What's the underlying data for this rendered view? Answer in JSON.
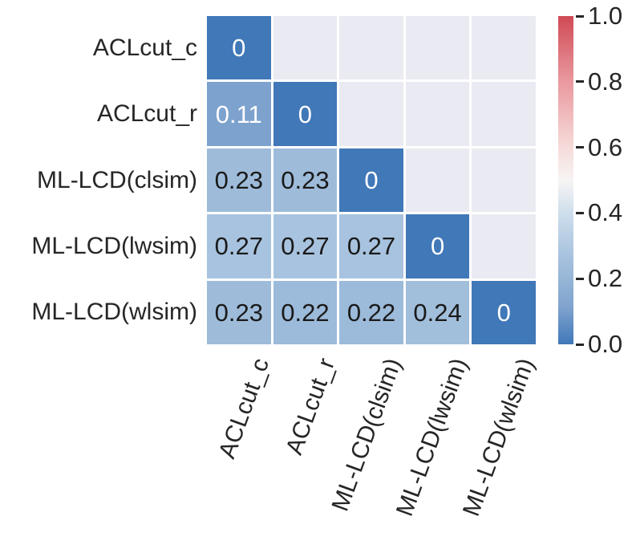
{
  "figure": {
    "background": "#ffffff",
    "masked_cell_color": "#eaeaf2",
    "grid_line_color": "#ffffff",
    "axis_label_color": "#262626",
    "annotation_dark_color": "#1a1a1a",
    "annotation_light_color": "#ffffff"
  },
  "chart_data": {
    "type": "heatmap",
    "title": "",
    "row_labels": [
      "ACLcut_c",
      "ACLcut_r",
      "ML-LCD(clsim)",
      "ML-LCD(lwsim)",
      "ML-LCD(wlsim)"
    ],
    "col_labels": [
      "ACLcut_c",
      "ACLcut_r",
      "ML-LCD(clsim)",
      "ML-LCD(lwsim)",
      "ML-LCD(wlsim)"
    ],
    "matrix": [
      [
        0,
        null,
        null,
        null,
        null
      ],
      [
        0.11,
        0,
        null,
        null,
        null
      ],
      [
        0.23,
        0.23,
        0,
        null,
        null
      ],
      [
        0.27,
        0.27,
        0.27,
        0,
        null
      ],
      [
        0.23,
        0.22,
        0.22,
        0.24,
        0
      ]
    ],
    "annotations": [
      [
        "0",
        "",
        "",
        "",
        ""
      ],
      [
        "0.11",
        "0",
        "",
        "",
        ""
      ],
      [
        "0.23",
        "0.23",
        "0",
        "",
        ""
      ],
      [
        "0.27",
        "0.27",
        "0.27",
        "0",
        ""
      ],
      [
        "0.23",
        "0.22",
        "0.22",
        "0.24",
        "0"
      ]
    ],
    "mask": "upper-triangle",
    "value_range": [
      0,
      1
    ],
    "light_text_threshold": 0.2,
    "colorbar_position": "right",
    "colorbar_tick_values": [
      1.0,
      0.8,
      0.6,
      0.4,
      0.2,
      0.0
    ],
    "colorbar_tick_labels": [
      "1.0",
      "0.8",
      "0.6",
      "0.4",
      "0.2",
      "0.0"
    ],
    "colormap_name": "blue-white-red-diverging",
    "colormap_stops": [
      {
        "pos": 0.0,
        "color": "#4078b8"
      },
      {
        "pos": 0.11,
        "color": "#7ea2ce"
      },
      {
        "pos": 0.22,
        "color": "#9cbad9"
      },
      {
        "pos": 0.27,
        "color": "#a8c3df"
      },
      {
        "pos": 0.4,
        "color": "#cedeec"
      },
      {
        "pos": 0.5,
        "color": "#f7f5f4"
      },
      {
        "pos": 0.62,
        "color": "#f5d5d4"
      },
      {
        "pos": 0.8,
        "color": "#e9999f"
      },
      {
        "pos": 1.0,
        "color": "#d04a55"
      }
    ]
  }
}
